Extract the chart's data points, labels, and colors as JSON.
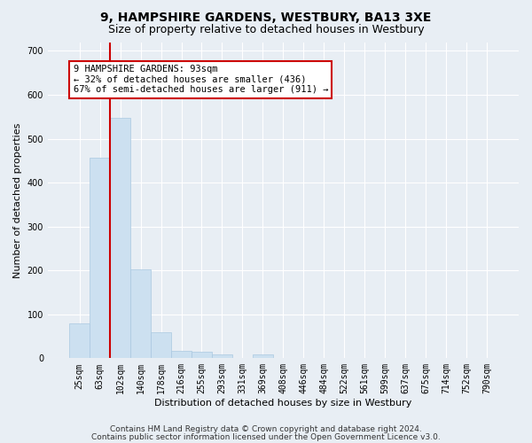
{
  "title": "9, HAMPSHIRE GARDENS, WESTBURY, BA13 3XE",
  "subtitle": "Size of property relative to detached houses in Westbury",
  "xlabel": "Distribution of detached houses by size in Westbury",
  "ylabel": "Number of detached properties",
  "footer_line1": "Contains HM Land Registry data © Crown copyright and database right 2024.",
  "footer_line2": "Contains public sector information licensed under the Open Government Licence v3.0.",
  "bar_labels": [
    "25sqm",
    "63sqm",
    "102sqm",
    "140sqm",
    "178sqm",
    "216sqm",
    "255sqm",
    "293sqm",
    "331sqm",
    "369sqm",
    "408sqm",
    "446sqm",
    "484sqm",
    "522sqm",
    "561sqm",
    "599sqm",
    "637sqm",
    "675sqm",
    "714sqm",
    "752sqm",
    "790sqm"
  ],
  "bar_values": [
    80,
    457,
    548,
    203,
    60,
    17,
    15,
    8,
    0,
    8,
    0,
    0,
    0,
    0,
    0,
    0,
    0,
    0,
    0,
    0,
    0
  ],
  "bar_color": "#cce0f0",
  "bar_edge_color": "#aac8e0",
  "vline_color": "#cc0000",
  "annotation_text": "9 HAMPSHIRE GARDENS: 93sqm\n← 32% of detached houses are smaller (436)\n67% of semi-detached houses are larger (911) →",
  "annotation_box_color": "white",
  "annotation_box_edge_color": "#cc0000",
  "ylim": [
    0,
    720
  ],
  "yticks": [
    0,
    100,
    200,
    300,
    400,
    500,
    600,
    700
  ],
  "background_color": "#e8eef4",
  "plot_bg_color": "#e8eef4",
  "grid_color": "white",
  "title_fontsize": 10,
  "subtitle_fontsize": 9,
  "axis_label_fontsize": 8,
  "tick_fontsize": 7,
  "footer_fontsize": 6.5,
  "annotation_fontsize": 7.5
}
